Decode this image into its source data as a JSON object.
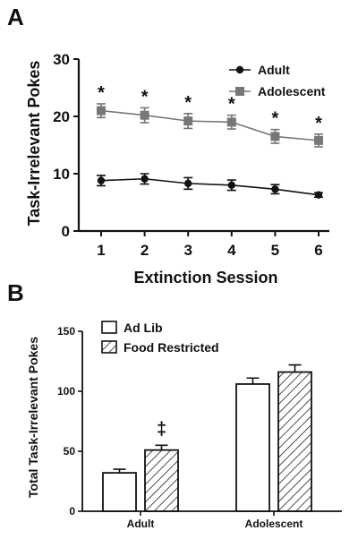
{
  "chart_data": [
    {
      "panel": "A",
      "type": "line",
      "xlabel": "Extinction Session",
      "ylabel": "Task-Irrelevant Pokes",
      "categories": [
        "1",
        "2",
        "3",
        "4",
        "5",
        "6"
      ],
      "ylim": [
        0,
        30
      ],
      "yticks": [
        "0",
        "10",
        "20",
        "30"
      ],
      "legend_position": "top-right",
      "series": [
        {
          "name": "Adult",
          "marker": "circle",
          "color": "#111111",
          "values": [
            8.8,
            9.1,
            8.3,
            8.0,
            7.3,
            6.3
          ],
          "errors": [
            0.9,
            0.9,
            1.0,
            0.9,
            0.8,
            0.4
          ]
        },
        {
          "name": "Adolescent",
          "marker": "square",
          "color": "#777777",
          "values": [
            21.0,
            20.2,
            19.2,
            19.0,
            16.5,
            15.8
          ],
          "errors": [
            1.2,
            1.3,
            1.3,
            1.2,
            1.2,
            1.1
          ]
        }
      ],
      "annotations": [
        "*",
        "*",
        "*",
        "*",
        "*",
        "*"
      ]
    },
    {
      "panel": "B",
      "type": "bar",
      "ylabel": "Total Task-Irrelevant Pokes",
      "categories": [
        "Adult",
        "Adolescent"
      ],
      "ylim": [
        0,
        150
      ],
      "yticks": [
        "0",
        "50",
        "100",
        "150"
      ],
      "legend_position": "top-left",
      "series": [
        {
          "name": "Ad Lib",
          "fill": "white",
          "values": [
            32,
            106
          ],
          "errors": [
            3,
            5
          ]
        },
        {
          "name": "Food Restricted",
          "fill": "hatched",
          "values": [
            51,
            116
          ],
          "errors": [
            4,
            6
          ]
        }
      ],
      "annotation": "‡"
    }
  ]
}
